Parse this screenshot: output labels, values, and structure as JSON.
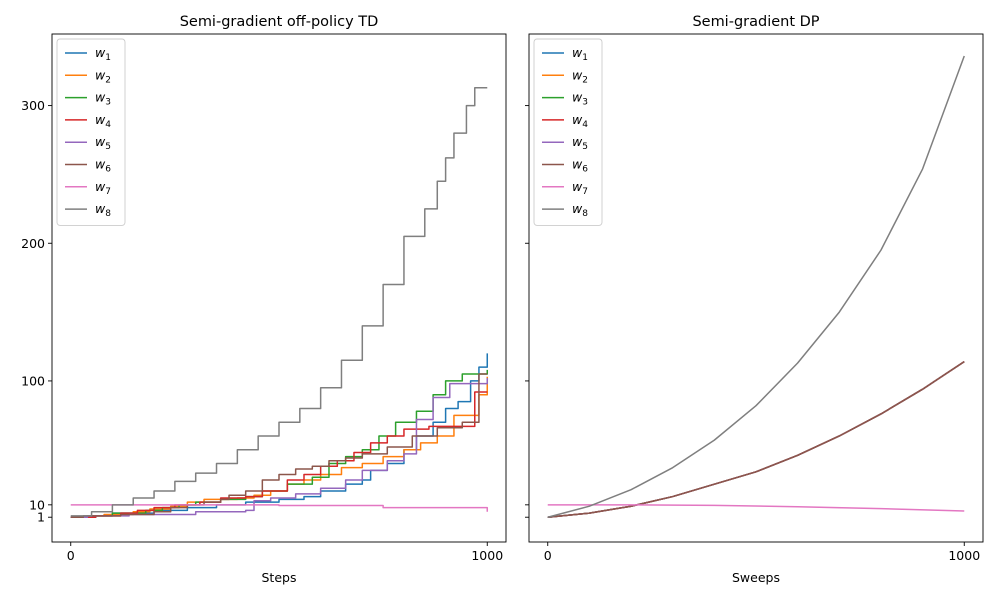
{
  "chart_data": [
    {
      "type": "line",
      "title": "Semi-gradient off-policy TD",
      "xlabel": "Steps",
      "ylabel": "",
      "xlim": [
        -45,
        1045
      ],
      "ylim": [
        -17,
        352
      ],
      "xticks": [
        0,
        1000
      ],
      "yticks": [
        1,
        10,
        100,
        200,
        300
      ],
      "step": true,
      "legend": "upper-left",
      "series": [
        {
          "name": "w",
          "sub": "1",
          "color": "#1f77b4",
          "points": [
            [
              0,
              1
            ],
            [
              60,
              2
            ],
            [
              100,
              4
            ],
            [
              200,
              6
            ],
            [
              280,
              8
            ],
            [
              350,
              10
            ],
            [
              420,
              12
            ],
            [
              500,
              14
            ],
            [
              560,
              16
            ],
            [
              600,
              20
            ],
            [
              660,
              25
            ],
            [
              700,
              28
            ],
            [
              720,
              35
            ],
            [
              760,
              40
            ],
            [
              800,
              50
            ],
            [
              830,
              60
            ],
            [
              870,
              70
            ],
            [
              900,
              80
            ],
            [
              930,
              85
            ],
            [
              960,
              100
            ],
            [
              980,
              110
            ],
            [
              1000,
              120
            ]
          ]
        },
        {
          "name": "w",
          "sub": "2",
          "color": "#ff7f0e",
          "points": [
            [
              0,
              1
            ],
            [
              40,
              2
            ],
            [
              80,
              3
            ],
            [
              150,
              5
            ],
            [
              190,
              7
            ],
            [
              240,
              9
            ],
            [
              280,
              12
            ],
            [
              320,
              14
            ],
            [
              400,
              15
            ],
            [
              440,
              17
            ],
            [
              480,
              20
            ],
            [
              520,
              25
            ],
            [
              560,
              28
            ],
            [
              600,
              32
            ],
            [
              650,
              37
            ],
            [
              700,
              40
            ],
            [
              750,
              45
            ],
            [
              800,
              50
            ],
            [
              840,
              55
            ],
            [
              880,
              60
            ],
            [
              920,
              75
            ],
            [
              980,
              90
            ],
            [
              1000,
              103
            ]
          ]
        },
        {
          "name": "w",
          "sub": "3",
          "color": "#2ca02c",
          "points": [
            [
              0,
              1
            ],
            [
              50,
              2
            ],
            [
              100,
              4
            ],
            [
              180,
              6
            ],
            [
              220,
              8
            ],
            [
              260,
              10
            ],
            [
              300,
              12
            ],
            [
              360,
              14
            ],
            [
              420,
              16
            ],
            [
              460,
              20
            ],
            [
              520,
              25
            ],
            [
              580,
              30
            ],
            [
              620,
              40
            ],
            [
              660,
              45
            ],
            [
              700,
              50
            ],
            [
              740,
              60
            ],
            [
              780,
              70
            ],
            [
              830,
              78
            ],
            [
              870,
              90
            ],
            [
              900,
              100
            ],
            [
              940,
              105
            ],
            [
              1000,
              108
            ]
          ]
        },
        {
          "name": "w",
          "sub": "4",
          "color": "#d62728",
          "points": [
            [
              0,
              1
            ],
            [
              60,
              2
            ],
            [
              120,
              4
            ],
            [
              160,
              6
            ],
            [
              200,
              8
            ],
            [
              250,
              10
            ],
            [
              310,
              12
            ],
            [
              360,
              15
            ],
            [
              420,
              16
            ],
            [
              460,
              20
            ],
            [
              520,
              28
            ],
            [
              560,
              32
            ],
            [
              600,
              38
            ],
            [
              640,
              42
            ],
            [
              680,
              48
            ],
            [
              720,
              55
            ],
            [
              760,
              60
            ],
            [
              800,
              65
            ],
            [
              860,
              67
            ],
            [
              960,
              67
            ],
            [
              970,
              92
            ],
            [
              1000,
              92
            ]
          ]
        },
        {
          "name": "w",
          "sub": "5",
          "color": "#9467bd",
          "points": [
            [
              0,
              1
            ],
            [
              40,
              2
            ],
            [
              140,
              3
            ],
            [
              300,
              5
            ],
            [
              420,
              6
            ],
            [
              440,
              13
            ],
            [
              480,
              15
            ],
            [
              540,
              18
            ],
            [
              600,
              22
            ],
            [
              660,
              28
            ],
            [
              700,
              35
            ],
            [
              760,
              42
            ],
            [
              800,
              47
            ],
            [
              830,
              72
            ],
            [
              870,
              88
            ],
            [
              910,
              98
            ],
            [
              1000,
              102
            ]
          ]
        },
        {
          "name": "w",
          "sub": "6",
          "color": "#8c564b",
          "points": [
            [
              0,
              1
            ],
            [
              30,
              2
            ],
            [
              120,
              3
            ],
            [
              200,
              5
            ],
            [
              240,
              8
            ],
            [
              280,
              10
            ],
            [
              320,
              12
            ],
            [
              360,
              14
            ],
            [
              380,
              17
            ],
            [
              420,
              20
            ],
            [
              460,
              28
            ],
            [
              500,
              32
            ],
            [
              540,
              36
            ],
            [
              580,
              38
            ],
            [
              620,
              42
            ],
            [
              660,
              44
            ],
            [
              700,
              47
            ],
            [
              760,
              52
            ],
            [
              820,
              60
            ],
            [
              880,
              66
            ],
            [
              940,
              70
            ],
            [
              980,
              105
            ],
            [
              1000,
              105
            ]
          ]
        },
        {
          "name": "w",
          "sub": "7",
          "color": "#e377c2",
          "points": [
            [
              0,
              10
            ],
            [
              250,
              10
            ],
            [
              500,
              9.5
            ],
            [
              750,
              8
            ],
            [
              1000,
              5
            ]
          ]
        },
        {
          "name": "w",
          "sub": "8",
          "color": "#7f7f7f",
          "points": [
            [
              0,
              2
            ],
            [
              50,
              5
            ],
            [
              100,
              10
            ],
            [
              150,
              15
            ],
            [
              200,
              20
            ],
            [
              250,
              27
            ],
            [
              300,
              33
            ],
            [
              350,
              40
            ],
            [
              400,
              50
            ],
            [
              450,
              60
            ],
            [
              500,
              70
            ],
            [
              550,
              80
            ],
            [
              600,
              95
            ],
            [
              650,
              115
            ],
            [
              700,
              140
            ],
            [
              750,
              170
            ],
            [
              800,
              205
            ],
            [
              850,
              225
            ],
            [
              880,
              245
            ],
            [
              900,
              262
            ],
            [
              920,
              280
            ],
            [
              950,
              300
            ],
            [
              970,
              313
            ],
            [
              1000,
              313
            ]
          ]
        }
      ]
    },
    {
      "type": "line",
      "title": "Semi-gradient DP",
      "xlabel": "Sweeps",
      "ylabel": "",
      "xlim": [
        -45,
        1045
      ],
      "ylim": [
        -17,
        352
      ],
      "xticks": [
        0,
        1000
      ],
      "yticks": [
        1,
        10,
        100,
        200,
        300
      ],
      "step": false,
      "legend": "upper-left",
      "series": [
        {
          "name": "w",
          "sub": "1",
          "color": "#1f77b4",
          "points": [
            [
              0,
              1
            ],
            [
              100,
              4
            ],
            [
              200,
              9
            ],
            [
              300,
              16
            ],
            [
              400,
              25
            ],
            [
              500,
              34
            ],
            [
              600,
              46
            ],
            [
              700,
              60
            ],
            [
              800,
              76
            ],
            [
              900,
              94
            ],
            [
              1000,
              114
            ]
          ]
        },
        {
          "name": "w",
          "sub": "2",
          "color": "#ff7f0e",
          "points": [
            [
              0,
              1
            ],
            [
              100,
              4
            ],
            [
              200,
              9
            ],
            [
              300,
              16
            ],
            [
              400,
              25
            ],
            [
              500,
              34
            ],
            [
              600,
              46
            ],
            [
              700,
              60
            ],
            [
              800,
              76
            ],
            [
              900,
              94
            ],
            [
              1000,
              114
            ]
          ]
        },
        {
          "name": "w",
          "sub": "3",
          "color": "#2ca02c",
          "points": [
            [
              0,
              1
            ],
            [
              100,
              4
            ],
            [
              200,
              9
            ],
            [
              300,
              16
            ],
            [
              400,
              25
            ],
            [
              500,
              34
            ],
            [
              600,
              46
            ],
            [
              700,
              60
            ],
            [
              800,
              76
            ],
            [
              900,
              94
            ],
            [
              1000,
              114
            ]
          ]
        },
        {
          "name": "w",
          "sub": "4",
          "color": "#d62728",
          "points": [
            [
              0,
              1
            ],
            [
              100,
              4
            ],
            [
              200,
              9
            ],
            [
              300,
              16
            ],
            [
              400,
              25
            ],
            [
              500,
              34
            ],
            [
              600,
              46
            ],
            [
              700,
              60
            ],
            [
              800,
              76
            ],
            [
              900,
              94
            ],
            [
              1000,
              114
            ]
          ]
        },
        {
          "name": "w",
          "sub": "5",
          "color": "#9467bd",
          "points": [
            [
              0,
              1
            ],
            [
              100,
              4
            ],
            [
              200,
              9
            ],
            [
              300,
              16
            ],
            [
              400,
              25
            ],
            [
              500,
              34
            ],
            [
              600,
              46
            ],
            [
              700,
              60
            ],
            [
              800,
              76
            ],
            [
              900,
              94
            ],
            [
              1000,
              114
            ]
          ]
        },
        {
          "name": "w",
          "sub": "6",
          "color": "#8c564b",
          "points": [
            [
              0,
              1
            ],
            [
              100,
              4
            ],
            [
              200,
              9
            ],
            [
              300,
              16
            ],
            [
              400,
              25
            ],
            [
              500,
              34
            ],
            [
              600,
              46
            ],
            [
              700,
              60
            ],
            [
              800,
              76
            ],
            [
              900,
              94
            ],
            [
              1000,
              114
            ]
          ]
        },
        {
          "name": "w",
          "sub": "7",
          "color": "#e377c2",
          "points": [
            [
              0,
              10
            ],
            [
              200,
              10
            ],
            [
              400,
              9.6
            ],
            [
              600,
              8.6
            ],
            [
              800,
              7.2
            ],
            [
              1000,
              5.5
            ]
          ]
        },
        {
          "name": "w",
          "sub": "8",
          "color": "#7f7f7f",
          "points": [
            [
              0,
              1
            ],
            [
              100,
              9
            ],
            [
              200,
              21
            ],
            [
              300,
              37
            ],
            [
              400,
              57
            ],
            [
              500,
              82
            ],
            [
              600,
              113
            ],
            [
              700,
              150
            ],
            [
              800,
              195
            ],
            [
              900,
              254
            ],
            [
              1000,
              336
            ]
          ]
        }
      ]
    }
  ]
}
